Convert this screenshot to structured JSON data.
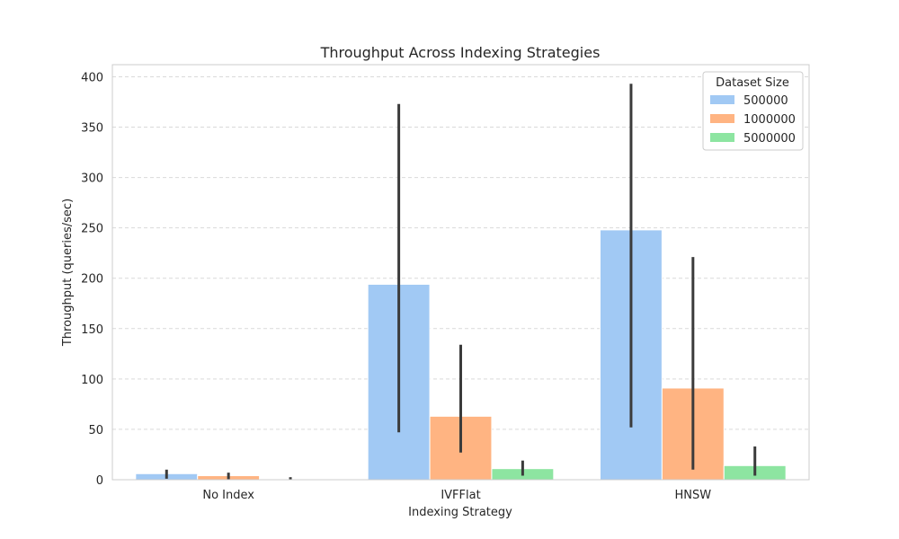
{
  "chart_data": {
    "type": "bar",
    "title": "Throughput Across Indexing Strategies",
    "xlabel": "Indexing Strategy",
    "ylabel": "Throughput (queries/sec)",
    "categories": [
      "No Index",
      "IVFFlat",
      "HNSW"
    ],
    "ylim": [
      0,
      412
    ],
    "yticks": [
      0,
      50,
      100,
      150,
      200,
      250,
      300,
      350,
      400
    ],
    "grid": true,
    "legend": {
      "title": "Dataset Size",
      "placement": "top-right"
    },
    "series": [
      {
        "name": "500000",
        "color": "#a1c9f4",
        "values": [
          6,
          194,
          248
        ],
        "err_low": [
          1,
          47,
          52
        ],
        "err_high": [
          10,
          373,
          393
        ]
      },
      {
        "name": "1000000",
        "color": "#ffb482",
        "values": [
          4,
          63,
          91
        ],
        "err_low": [
          0.5,
          27,
          10
        ],
        "err_high": [
          7,
          134,
          221
        ]
      },
      {
        "name": "5000000",
        "color": "#8de5a1",
        "values": [
          0.5,
          11,
          14
        ],
        "err_low": [
          0.1,
          4,
          4
        ],
        "err_high": [
          2.5,
          19,
          33
        ]
      }
    ]
  }
}
